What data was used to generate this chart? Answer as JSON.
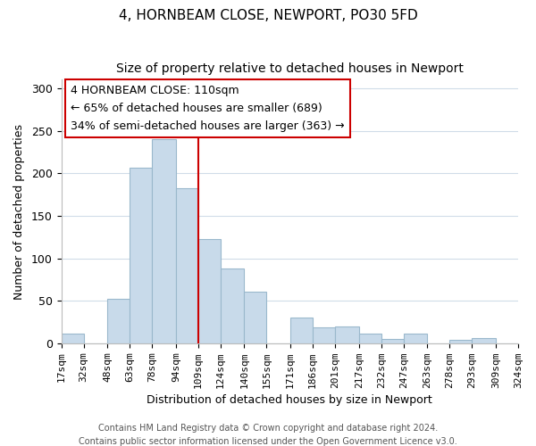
{
  "title": "4, HORNBEAM CLOSE, NEWPORT, PO30 5FD",
  "subtitle": "Size of property relative to detached houses in Newport",
  "xlabel": "Distribution of detached houses by size in Newport",
  "ylabel": "Number of detached properties",
  "bar_color": "#c8daea",
  "bar_edgecolor": "#9ab8cc",
  "vline_x": 109,
  "vline_color": "#cc0000",
  "annotation_title": "4 HORNBEAM CLOSE: 110sqm",
  "annotation_line1": "← 65% of detached houses are smaller (689)",
  "annotation_line2": "34% of semi-detached houses are larger (363) →",
  "bins": [
    17,
    32,
    48,
    63,
    78,
    94,
    109,
    124,
    140,
    155,
    171,
    186,
    201,
    217,
    232,
    247,
    263,
    278,
    293,
    309,
    324
  ],
  "counts": [
    11,
    0,
    52,
    206,
    240,
    182,
    123,
    88,
    61,
    0,
    30,
    19,
    20,
    11,
    5,
    11,
    0,
    4,
    6,
    0
  ],
  "xlim_left": 17,
  "xlim_right": 324,
  "ylim_top": 310,
  "yticks": [
    0,
    50,
    100,
    150,
    200,
    250,
    300
  ],
  "footer1": "Contains HM Land Registry data © Crown copyright and database right 2024.",
  "footer2": "Contains public sector information licensed under the Open Government Licence v3.0.",
  "title_fontsize": 11,
  "subtitle_fontsize": 10,
  "axis_label_fontsize": 9,
  "tick_fontsize": 8,
  "footer_fontsize": 7,
  "annot_fontsize": 9
}
